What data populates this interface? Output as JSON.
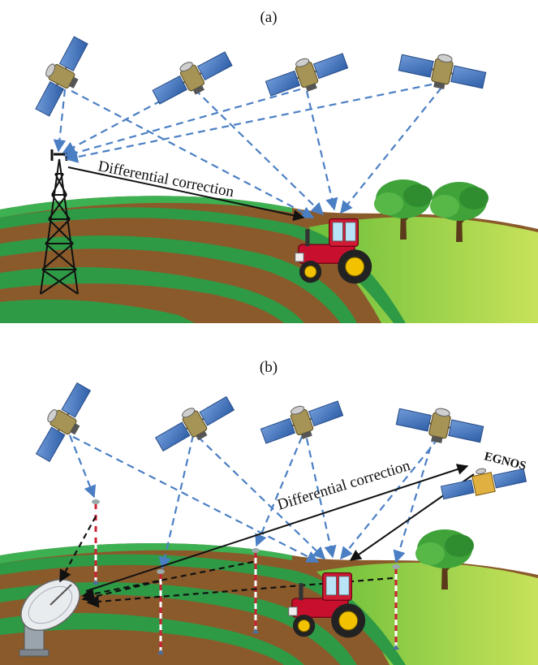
{
  "panels": [
    {
      "label": "(a)",
      "correction_label": "Differential correction"
    },
    {
      "label": "(b)",
      "correction_label": "Differential correction",
      "egnos_label": "EGNOS"
    }
  ],
  "colors": {
    "signal_dashed": "#4b7fc4",
    "correction_arrow": "#111111",
    "field_brown": "#8a5a2b",
    "crop_green": "#2f9a45",
    "grass": "#9cd34a",
    "tractor_red": "#c8102e",
    "solar_panel": "#3d6fb5",
    "satellite_body": "#9a8a50"
  },
  "icons": [
    "satellite-icon",
    "radio-tower-icon",
    "tractor-icon",
    "tree-icon",
    "dish-antenna-icon",
    "reference-pole-icon",
    "egnos-satellite-icon"
  ]
}
